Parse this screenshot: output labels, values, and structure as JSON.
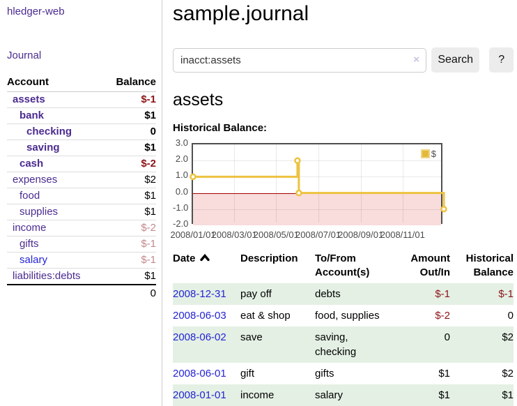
{
  "app": {
    "brand": "hledger-web",
    "nav_journal": "Journal"
  },
  "colors": {
    "link_purple": "#4b2b90",
    "link_blue": "#2424d6",
    "negative_strong": "#8c1418",
    "negative_soft": "#c4888c",
    "row_shade_green": "#e4f0e4",
    "chart_line_gold": "#edc240",
    "chart_negative_fill": "#f9dcdc",
    "chart_zero_line": "#a40000"
  },
  "sidebar": {
    "headers": {
      "account": "Account",
      "balance": "Balance"
    },
    "accounts": [
      {
        "name": "assets",
        "indent": 1,
        "bold": true,
        "link": "purple",
        "balance": "$-1",
        "balance_style": "neg-strong"
      },
      {
        "name": "bank",
        "indent": 2,
        "bold": true,
        "link": "purple",
        "balance": "$1",
        "balance_style": "pos"
      },
      {
        "name": "checking",
        "indent": 3,
        "bold": true,
        "link": "purple",
        "balance": "0",
        "balance_style": "pos"
      },
      {
        "name": "saving",
        "indent": 3,
        "bold": true,
        "link": "purple",
        "balance": "$1",
        "balance_style": "pos"
      },
      {
        "name": "cash",
        "indent": 2,
        "bold": true,
        "link": "purple",
        "balance": "$-2",
        "balance_style": "neg-strong"
      },
      {
        "name": "expenses",
        "indent": 1,
        "bold": false,
        "link": "purple",
        "balance": "$2",
        "balance_style": "pos"
      },
      {
        "name": "food",
        "indent": 2,
        "bold": false,
        "link": "purple",
        "balance": "$1",
        "balance_style": "pos"
      },
      {
        "name": "supplies",
        "indent": 2,
        "bold": false,
        "link": "purple",
        "balance": "$1",
        "balance_style": "pos"
      },
      {
        "name": "income",
        "indent": 1,
        "bold": false,
        "link": "purple",
        "balance": "$-2",
        "balance_style": "neg-soft"
      },
      {
        "name": "gifts",
        "indent": 2,
        "bold": false,
        "link": "purple",
        "balance": "$-1",
        "balance_style": "neg-soft"
      },
      {
        "name": "salary",
        "indent": 2,
        "bold": false,
        "link": "blue",
        "balance": "$-1",
        "balance_style": "neg-soft"
      },
      {
        "name": "liabilities:debts",
        "indent": 1,
        "bold": false,
        "link": "purple",
        "balance": "$1",
        "balance_style": "pos"
      }
    ],
    "total": "0"
  },
  "main": {
    "title": "sample.journal",
    "search": {
      "value": "inacct:assets",
      "clear_icon": "×",
      "button": "Search",
      "help_button": "?"
    },
    "account_heading": "assets",
    "chart_label": "Historical Balance:"
  },
  "chart_data": {
    "type": "line",
    "title": "Historical Balance:",
    "legend": [
      {
        "name": "$",
        "color": "#edc240"
      }
    ],
    "step": "after",
    "x_domain": [
      "2008-01-01",
      "2008-12-31"
    ],
    "ylim": [
      -2,
      3
    ],
    "x_ticks": [
      {
        "date": "2008-01-01",
        "label": "2008/01/01"
      },
      {
        "date": "2008-03-01",
        "label": "2008/03/01"
      },
      {
        "date": "2008-05-01",
        "label": "2008/05/01"
      },
      {
        "date": "2008-07-01",
        "label": "2008/07/01"
      },
      {
        "date": "2008-09-01",
        "label": "2008/09/01"
      },
      {
        "date": "2008-11-01",
        "label": "2008/11/01"
      }
    ],
    "y_ticks": [
      {
        "value": 3,
        "label": "3.0"
      },
      {
        "value": 2,
        "label": "2.0"
      },
      {
        "value": 1,
        "label": "1.0"
      },
      {
        "value": 0,
        "label": "0.0"
      },
      {
        "value": -1,
        "label": "-1.0"
      },
      {
        "value": -2,
        "label": "-2.0"
      }
    ],
    "points": [
      {
        "date": "2008-01-01",
        "value": 1
      },
      {
        "date": "2008-06-01",
        "value": 2
      },
      {
        "date": "2008-06-03",
        "value": 0
      },
      {
        "date": "2008-12-31",
        "value": -1
      }
    ],
    "negative_region_below": 0
  },
  "register": {
    "headers": [
      "Date",
      "Description",
      "To/From Account(s)",
      "Amount Out/In",
      "Historical Balance"
    ],
    "sort_column": "Date",
    "sort_direction": "ascending",
    "rows": [
      {
        "date": "2008-12-31",
        "description": "pay off",
        "accounts": "debts",
        "amount": "$-1",
        "amount_neg": true,
        "balance": "$-1",
        "balance_neg": true,
        "shade": true
      },
      {
        "date": "2008-06-03",
        "description": "eat & shop",
        "accounts": "food, supplies",
        "amount": "$-2",
        "amount_neg": true,
        "balance": "0",
        "balance_neg": false,
        "shade": false
      },
      {
        "date": "2008-06-02",
        "description": "save",
        "accounts": "saving, checking",
        "amount": "0",
        "amount_neg": false,
        "balance": "$2",
        "balance_neg": false,
        "shade": true
      },
      {
        "date": "2008-06-01",
        "description": "gift",
        "accounts": "gifts",
        "amount": "$1",
        "amount_neg": false,
        "balance": "$2",
        "balance_neg": false,
        "shade": false
      },
      {
        "date": "2008-01-01",
        "description": "income",
        "accounts": "salary",
        "amount": "$1",
        "amount_neg": false,
        "balance": "$1",
        "balance_neg": false,
        "shade": true
      }
    ]
  }
}
